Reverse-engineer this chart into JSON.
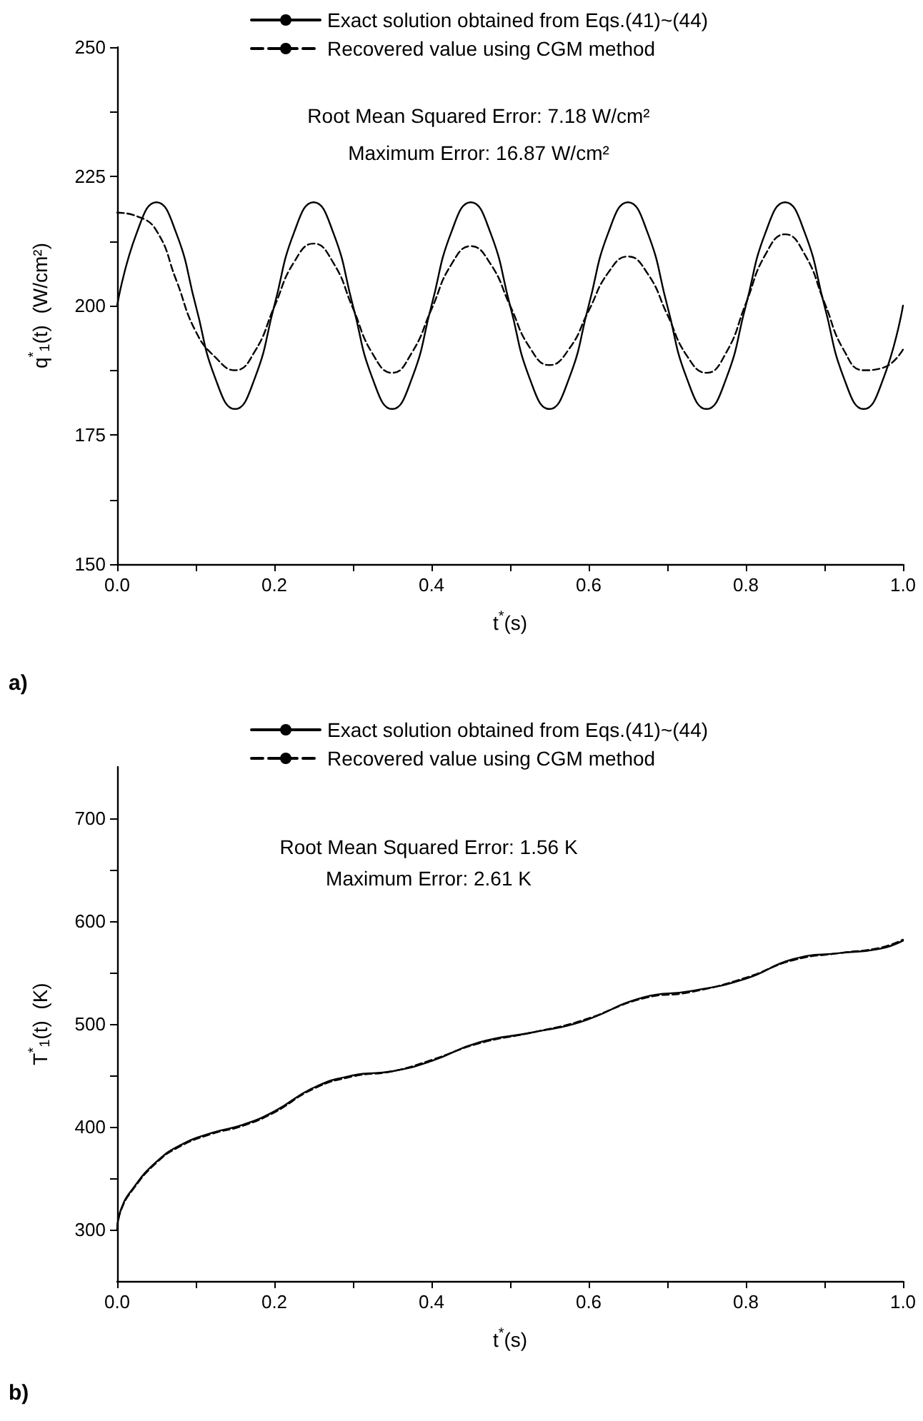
{
  "chart_data": [
    {
      "type": "line",
      "xlabel": "t$^{*}$(s)",
      "ylabel": "q$^{*}$$_{1}$(t)  (W/cm²)",
      "annotations": [
        "Root Mean Squared Error: 7.18 W/cm²",
        "Maximum Error: 16.87 W/cm²",
        "a)"
      ],
      "x": [
        0,
        0.025,
        0.05,
        0.075,
        0.1,
        0.125,
        0.15,
        0.175,
        0.2,
        0.225,
        0.25,
        0.275,
        0.3,
        0.325,
        0.35,
        0.375,
        0.4,
        0.425,
        0.45,
        0.475,
        0.5,
        0.525,
        0.55,
        0.575,
        0.6,
        0.625,
        0.65,
        0.675,
        0.7,
        0.725,
        0.75,
        0.775,
        0.8,
        0.825,
        0.85,
        0.875,
        0.9,
        0.925,
        0.95,
        0.975,
        1.0
      ],
      "series": [
        {
          "name": "Exact solution obtained from Eqs.(41)~(44)",
          "color": "#000000",
          "line_style": "solid",
          "values": [
            200,
            214.1,
            220,
            214.1,
            200,
            185.9,
            180,
            185.9,
            200,
            214.1,
            220,
            214.1,
            200,
            185.9,
            180,
            185.9,
            200,
            214.1,
            220,
            214.1,
            200,
            185.9,
            180,
            185.9,
            200,
            214.1,
            220,
            214.1,
            200,
            185.9,
            180,
            185.9,
            200,
            214.1,
            220,
            214.1,
            200,
            185.9,
            180,
            185.9,
            200
          ]
        },
        {
          "name": "Recovered value using CGM method",
          "color": "#000000",
          "line_style": "dashed",
          "values": [
            218,
            217.3,
            214.5,
            205,
            195,
            190,
            187.5,
            191.1,
            199.8,
            208.4,
            212,
            208.3,
            199.5,
            190.7,
            187,
            190.9,
            199.3,
            207.9,
            211.5,
            208.1,
            200,
            191.9,
            188.5,
            191.6,
            199,
            206.4,
            209.5,
            206.2,
            198.3,
            190.3,
            187,
            190.9,
            200.4,
            209.9,
            213.8,
            209.9,
            200.6,
            191.3,
            187.5,
            188,
            191.5
          ]
        }
      ],
      "xlim": [
        0,
        1
      ],
      "xticks": [
        {
          "value": 0,
          "label": "0.0"
        },
        {
          "value": 0.1,
          "label": null
        },
        {
          "value": 0.2,
          "label": "0.2"
        },
        {
          "value": 0.3,
          "label": null
        },
        {
          "value": 0.4,
          "label": "0.4"
        },
        {
          "value": 0.5,
          "label": null
        },
        {
          "value": 0.6,
          "label": "0.6"
        },
        {
          "value": 0.7,
          "label": null
        },
        {
          "value": 0.8,
          "label": "0.8"
        },
        {
          "value": 0.9,
          "label": null
        },
        {
          "value": 1,
          "label": "1.0"
        }
      ],
      "ylim": [
        150,
        250
      ],
      "yticks": [
        150,
        {
          "value": 162.5,
          "label": null
        },
        175,
        {
          "value": 187.5,
          "label": null
        },
        200,
        {
          "value": 212.5,
          "label": null
        },
        225,
        {
          "value": 237.5,
          "label": null
        },
        250
      ],
      "legend": "top",
      "grid": false,
      "marker": "none"
    },
    {
      "type": "line",
      "xlabel": "t$^{*}$(s)",
      "ylabel": "T$^{*}$$_{1}$(t)  (K)",
      "annotations": [
        "Root Mean Squared Error: 1.56 K",
        "Maximum Error: 2.61 K",
        "b)"
      ],
      "x": [
        0,
        0.005,
        0.02,
        0.05,
        0.08,
        0.12,
        0.16,
        0.2,
        0.25,
        0.3,
        0.35,
        0.4,
        0.46,
        0.53,
        0.59,
        0.67,
        0.73,
        0.8,
        0.86,
        0.92,
        0.97,
        1.0
      ],
      "series": [
        {
          "name": "Exact solution obtained from Eqs.(41)~(44)",
          "color": "#000000",
          "line_style": "solid",
          "values": [
            300,
            320,
            340,
            366,
            382,
            394,
            402,
            415,
            438,
            450,
            454,
            464,
            482,
            492,
            502,
            526,
            532,
            544,
            563,
            569,
            573,
            581
          ]
        },
        {
          "name": "Recovered value using CGM method",
          "color": "#000000",
          "line_style": "dashed",
          "values": [
            300,
            319,
            339,
            365,
            381,
            393,
            401,
            414,
            437,
            449,
            454,
            465,
            481,
            492,
            503,
            525,
            531,
            545,
            562,
            569,
            574,
            582
          ]
        }
      ],
      "xlim": [
        0,
        1
      ],
      "xticks": [
        {
          "value": 0,
          "label": "0.0"
        },
        {
          "value": 0.1,
          "label": null
        },
        {
          "value": 0.2,
          "label": "0.2"
        },
        {
          "value": 0.3,
          "label": null
        },
        {
          "value": 0.4,
          "label": "0.4"
        },
        {
          "value": 0.5,
          "label": null
        },
        {
          "value": 0.6,
          "label": "0.6"
        },
        {
          "value": 0.7,
          "label": null
        },
        {
          "value": 0.8,
          "label": "0.8"
        },
        {
          "value": 0.9,
          "label": null
        },
        {
          "value": 1,
          "label": "1.0"
        }
      ],
      "ylim": [
        250,
        750
      ],
      "yticks": [
        300,
        {
          "value": 350,
          "label": null
        },
        400,
        {
          "value": 450,
          "label": null
        },
        500,
        {
          "value": 550,
          "label": null
        },
        600,
        {
          "value": 650,
          "label": null
        },
        700
      ],
      "legend": "top",
      "grid": false,
      "marker": "none"
    }
  ]
}
